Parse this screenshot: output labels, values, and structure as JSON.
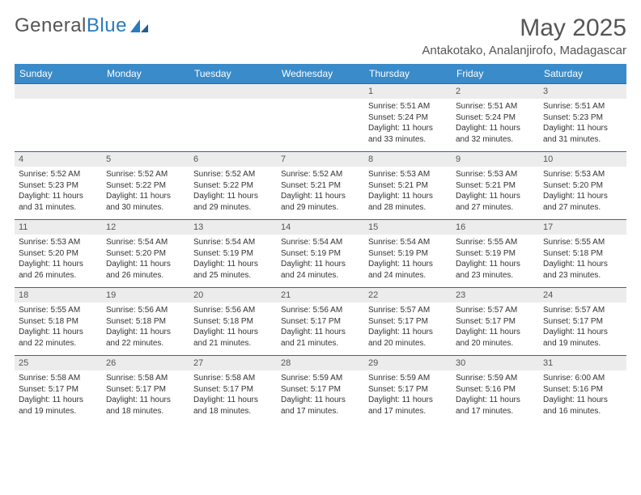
{
  "brand": {
    "name_a": "General",
    "name_b": "Blue"
  },
  "title": "May 2025",
  "location": "Antakotako, Analanjirofo, Madagascar",
  "colors": {
    "header_bg": "#3a8bc9",
    "header_text": "#ffffff",
    "row_divider": "#2a6aa0",
    "daynum_bg": "#ececec",
    "text": "#333333",
    "muted": "#555555",
    "brand_blue": "#2a7bbf"
  },
  "weekdays": [
    "Sunday",
    "Monday",
    "Tuesday",
    "Wednesday",
    "Thursday",
    "Friday",
    "Saturday"
  ],
  "weeks": [
    [
      null,
      null,
      null,
      null,
      {
        "n": "1",
        "sunrise": "5:51 AM",
        "sunset": "5:24 PM",
        "daylight": "11 hours and 33 minutes."
      },
      {
        "n": "2",
        "sunrise": "5:51 AM",
        "sunset": "5:24 PM",
        "daylight": "11 hours and 32 minutes."
      },
      {
        "n": "3",
        "sunrise": "5:51 AM",
        "sunset": "5:23 PM",
        "daylight": "11 hours and 31 minutes."
      }
    ],
    [
      {
        "n": "4",
        "sunrise": "5:52 AM",
        "sunset": "5:23 PM",
        "daylight": "11 hours and 31 minutes."
      },
      {
        "n": "5",
        "sunrise": "5:52 AM",
        "sunset": "5:22 PM",
        "daylight": "11 hours and 30 minutes."
      },
      {
        "n": "6",
        "sunrise": "5:52 AM",
        "sunset": "5:22 PM",
        "daylight": "11 hours and 29 minutes."
      },
      {
        "n": "7",
        "sunrise": "5:52 AM",
        "sunset": "5:21 PM",
        "daylight": "11 hours and 29 minutes."
      },
      {
        "n": "8",
        "sunrise": "5:53 AM",
        "sunset": "5:21 PM",
        "daylight": "11 hours and 28 minutes."
      },
      {
        "n": "9",
        "sunrise": "5:53 AM",
        "sunset": "5:21 PM",
        "daylight": "11 hours and 27 minutes."
      },
      {
        "n": "10",
        "sunrise": "5:53 AM",
        "sunset": "5:20 PM",
        "daylight": "11 hours and 27 minutes."
      }
    ],
    [
      {
        "n": "11",
        "sunrise": "5:53 AM",
        "sunset": "5:20 PM",
        "daylight": "11 hours and 26 minutes."
      },
      {
        "n": "12",
        "sunrise": "5:54 AM",
        "sunset": "5:20 PM",
        "daylight": "11 hours and 26 minutes."
      },
      {
        "n": "13",
        "sunrise": "5:54 AM",
        "sunset": "5:19 PM",
        "daylight": "11 hours and 25 minutes."
      },
      {
        "n": "14",
        "sunrise": "5:54 AM",
        "sunset": "5:19 PM",
        "daylight": "11 hours and 24 minutes."
      },
      {
        "n": "15",
        "sunrise": "5:54 AM",
        "sunset": "5:19 PM",
        "daylight": "11 hours and 24 minutes."
      },
      {
        "n": "16",
        "sunrise": "5:55 AM",
        "sunset": "5:19 PM",
        "daylight": "11 hours and 23 minutes."
      },
      {
        "n": "17",
        "sunrise": "5:55 AM",
        "sunset": "5:18 PM",
        "daylight": "11 hours and 23 minutes."
      }
    ],
    [
      {
        "n": "18",
        "sunrise": "5:55 AM",
        "sunset": "5:18 PM",
        "daylight": "11 hours and 22 minutes."
      },
      {
        "n": "19",
        "sunrise": "5:56 AM",
        "sunset": "5:18 PM",
        "daylight": "11 hours and 22 minutes."
      },
      {
        "n": "20",
        "sunrise": "5:56 AM",
        "sunset": "5:18 PM",
        "daylight": "11 hours and 21 minutes."
      },
      {
        "n": "21",
        "sunrise": "5:56 AM",
        "sunset": "5:17 PM",
        "daylight": "11 hours and 21 minutes."
      },
      {
        "n": "22",
        "sunrise": "5:57 AM",
        "sunset": "5:17 PM",
        "daylight": "11 hours and 20 minutes."
      },
      {
        "n": "23",
        "sunrise": "5:57 AM",
        "sunset": "5:17 PM",
        "daylight": "11 hours and 20 minutes."
      },
      {
        "n": "24",
        "sunrise": "5:57 AM",
        "sunset": "5:17 PM",
        "daylight": "11 hours and 19 minutes."
      }
    ],
    [
      {
        "n": "25",
        "sunrise": "5:58 AM",
        "sunset": "5:17 PM",
        "daylight": "11 hours and 19 minutes."
      },
      {
        "n": "26",
        "sunrise": "5:58 AM",
        "sunset": "5:17 PM",
        "daylight": "11 hours and 18 minutes."
      },
      {
        "n": "27",
        "sunrise": "5:58 AM",
        "sunset": "5:17 PM",
        "daylight": "11 hours and 18 minutes."
      },
      {
        "n": "28",
        "sunrise": "5:59 AM",
        "sunset": "5:17 PM",
        "daylight": "11 hours and 17 minutes."
      },
      {
        "n": "29",
        "sunrise": "5:59 AM",
        "sunset": "5:17 PM",
        "daylight": "11 hours and 17 minutes."
      },
      {
        "n": "30",
        "sunrise": "5:59 AM",
        "sunset": "5:16 PM",
        "daylight": "11 hours and 17 minutes."
      },
      {
        "n": "31",
        "sunrise": "6:00 AM",
        "sunset": "5:16 PM",
        "daylight": "11 hours and 16 minutes."
      }
    ]
  ],
  "labels": {
    "sunrise": "Sunrise:",
    "sunset": "Sunset:",
    "daylight": "Daylight:"
  }
}
